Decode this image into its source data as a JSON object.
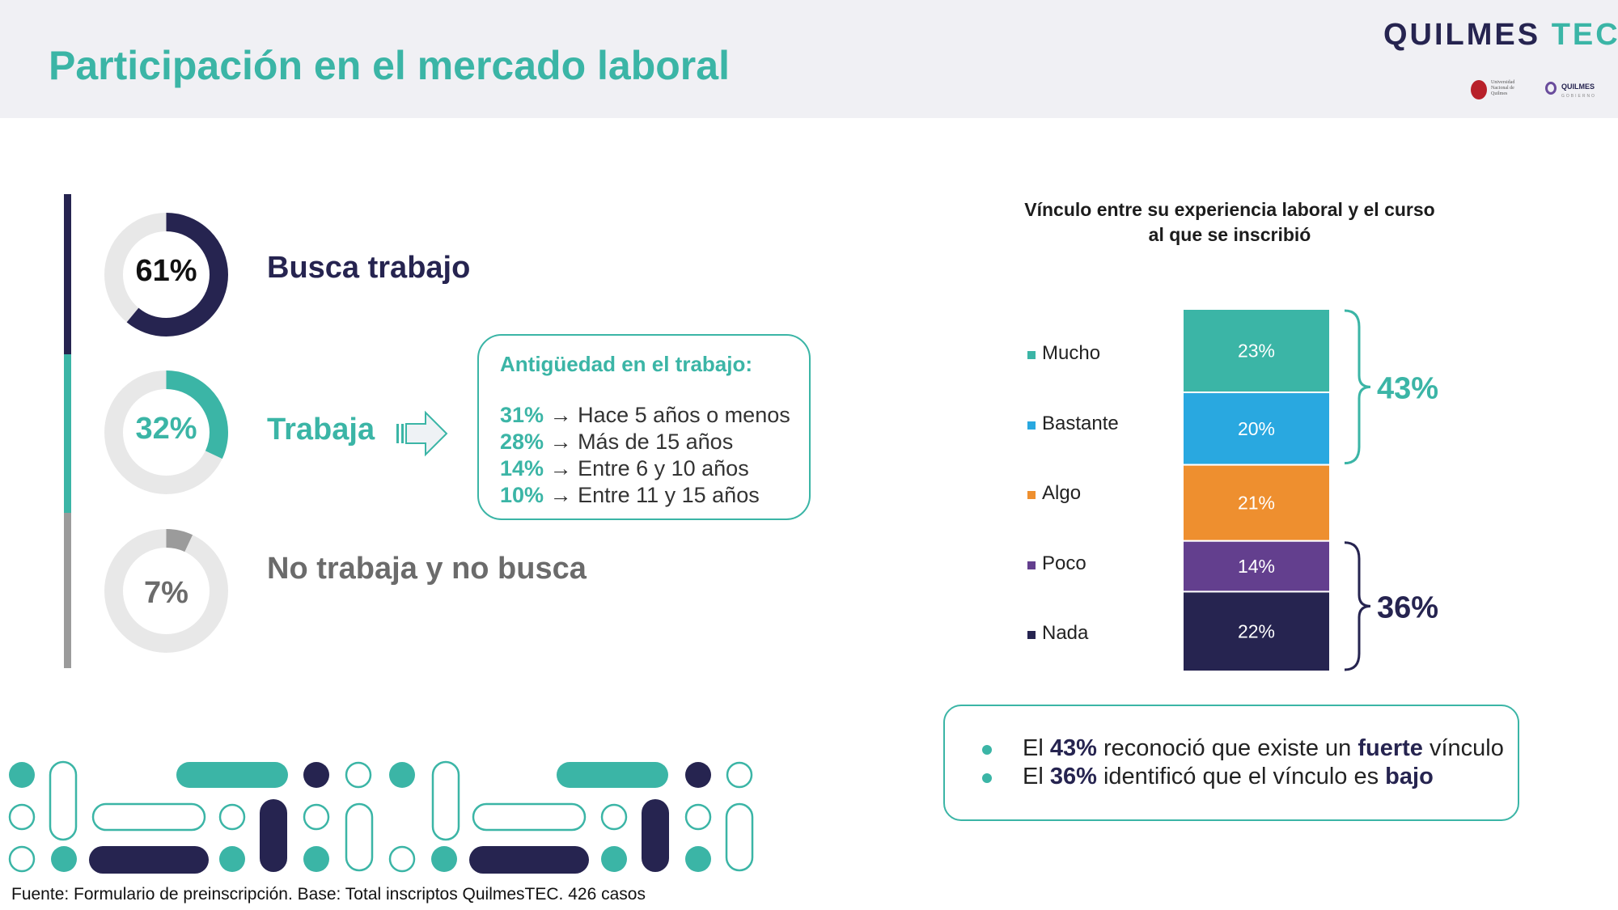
{
  "header": {
    "title": "Participación en el mercado laboral",
    "brand_main": "QUILMES",
    "brand_accent": "TEC",
    "logo_unq_text": "Universidad Nacional de Quilmes",
    "logo_qg_name": "QUILMES",
    "logo_qg_sub": "GOBIERNO"
  },
  "colors": {
    "teal": "#3bb5a6",
    "navy": "#262450",
    "gray": "#9b9b9b",
    "ring": "#e8e8e8"
  },
  "status": [
    {
      "pct_label": "61%",
      "label": "Busca trabajo",
      "value": 61,
      "color": "#262450"
    },
    {
      "pct_label": "32%",
      "label": "Trabaja",
      "value": 32,
      "color": "#3bb5a6"
    },
    {
      "pct_label": "7%",
      "label": "No trabaja y no busca",
      "value": 7,
      "color": "#9b9b9b"
    }
  ],
  "tenure": {
    "title": "Antigüedad en el trabajo:",
    "items": [
      {
        "pct": "31%",
        "text": "→ Hace 5 años o menos"
      },
      {
        "pct": "28%",
        "text": "→ Más de 15 años"
      },
      {
        "pct": "14%",
        "text": "→ Entre 6 y 10 años"
      },
      {
        "pct": "10%",
        "text": "→ Entre 11 y 15 años"
      }
    ]
  },
  "chart_data": {
    "type": "bar",
    "stacked": true,
    "title": "Vínculo entre su experiencia laboral y el curso al que se inscribió",
    "legend_position": "left",
    "series": [
      {
        "name": "Mucho",
        "value": 23,
        "label": "23%",
        "color": "#3bb5a6"
      },
      {
        "name": "Bastante",
        "value": 20,
        "label": "20%",
        "color": "#29a8e0"
      },
      {
        "name": "Algo",
        "value": 21,
        "label": "21%",
        "color": "#ee8f2f"
      },
      {
        "name": "Poco",
        "value": 14,
        "label": "14%",
        "color": "#633f8e"
      },
      {
        "name": "Nada",
        "value": 22,
        "label": "22%",
        "color": "#262450"
      }
    ],
    "groups": [
      {
        "label": "43%",
        "members": [
          "Mucho",
          "Bastante"
        ],
        "color": "#3bb5a6"
      },
      {
        "label": "36%",
        "members": [
          "Poco",
          "Nada"
        ],
        "color": "#262450"
      }
    ]
  },
  "summary": {
    "line1": {
      "pre": "El ",
      "pct": "43%",
      "mid": " reconoció que existe un ",
      "strong": "fuerte",
      "post": " vínculo"
    },
    "line2": {
      "pre": "El ",
      "pct": "36%",
      "mid": " identificó que el vínculo es ",
      "strong": "bajo",
      "post": ""
    }
  },
  "footer": "Fuente: Formulario de preinscripción. Base: Total inscriptos QuilmesTEC. 426 casos"
}
